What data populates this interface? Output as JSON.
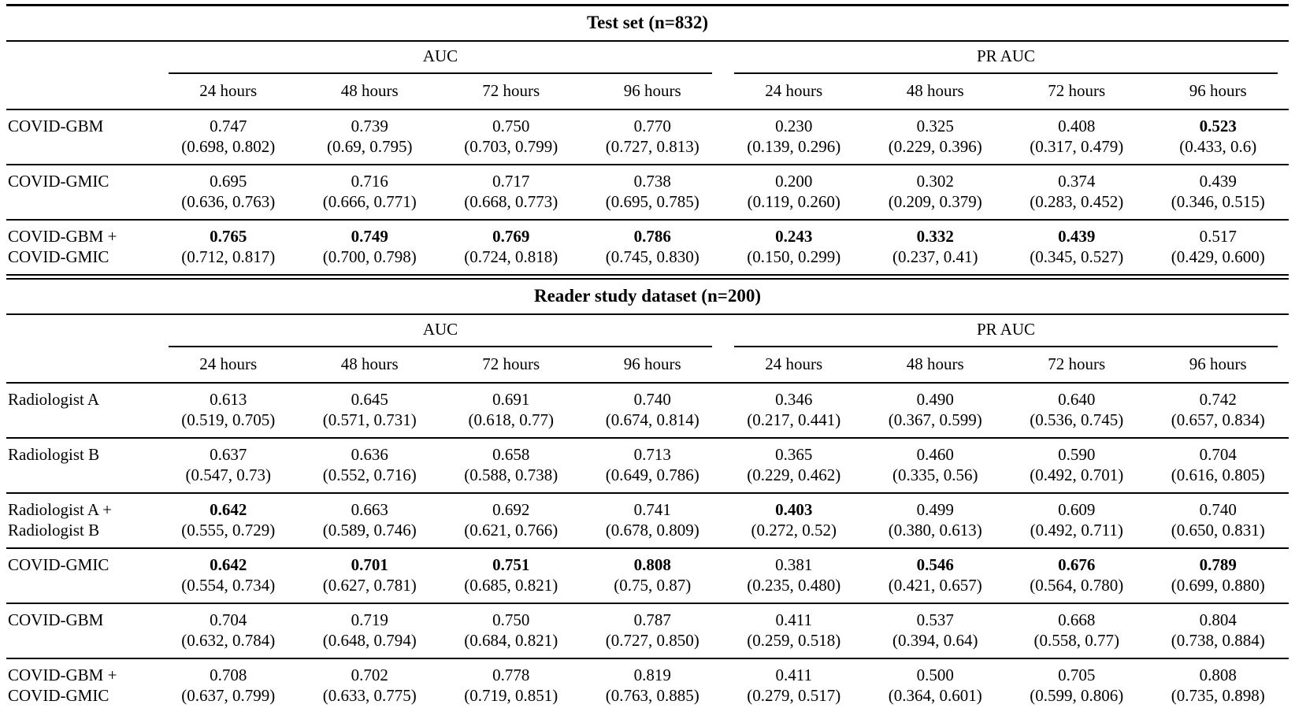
{
  "colors": {
    "text": "#000000",
    "background": "#ffffff",
    "rule": "#000000"
  },
  "table": {
    "sections": [
      {
        "title": "Test set (n=832)",
        "metric_groups": [
          "AUC",
          "PR AUC"
        ],
        "time_headers": [
          "24 hours",
          "48 hours",
          "72 hours",
          "96 hours",
          "24 hours",
          "48 hours",
          "72 hours",
          "96 hours"
        ],
        "rows": [
          {
            "label": "COVID-GBM",
            "cells": [
              {
                "value": "0.747",
                "ci": "(0.698, 0.802)",
                "bold": false
              },
              {
                "value": "0.739",
                "ci": "(0.69, 0.795)",
                "bold": false
              },
              {
                "value": "0.750",
                "ci": "(0.703, 0.799)",
                "bold": false
              },
              {
                "value": "0.770",
                "ci": "(0.727, 0.813)",
                "bold": false
              },
              {
                "value": "0.230",
                "ci": "(0.139, 0.296)",
                "bold": false
              },
              {
                "value": "0.325",
                "ci": "(0.229, 0.396)",
                "bold": false
              },
              {
                "value": "0.408",
                "ci": "(0.317, 0.479)",
                "bold": false
              },
              {
                "value": "0.523",
                "ci": "(0.433, 0.6)",
                "bold": true
              }
            ]
          },
          {
            "label": "COVID-GMIC",
            "cells": [
              {
                "value": "0.695",
                "ci": "(0.636, 0.763)",
                "bold": false
              },
              {
                "value": "0.716",
                "ci": "(0.666, 0.771)",
                "bold": false
              },
              {
                "value": "0.717",
                "ci": "(0.668, 0.773)",
                "bold": false
              },
              {
                "value": "0.738",
                "ci": "(0.695, 0.785)",
                "bold": false
              },
              {
                "value": "0.200",
                "ci": "(0.119, 0.260)",
                "bold": false
              },
              {
                "value": "0.302",
                "ci": "(0.209, 0.379)",
                "bold": false
              },
              {
                "value": "0.374",
                "ci": "(0.283, 0.452)",
                "bold": false
              },
              {
                "value": "0.439",
                "ci": "(0.346, 0.515)",
                "bold": false
              }
            ]
          },
          {
            "label": "COVID-GBM +\nCOVID-GMIC",
            "cells": [
              {
                "value": "0.765",
                "ci": "(0.712, 0.817)",
                "bold": true
              },
              {
                "value": "0.749",
                "ci": "(0.700, 0.798)",
                "bold": true
              },
              {
                "value": "0.769",
                "ci": "(0.724, 0.818)",
                "bold": true
              },
              {
                "value": "0.786",
                "ci": "(0.745, 0.830)",
                "bold": true
              },
              {
                "value": "0.243",
                "ci": "(0.150, 0.299)",
                "bold": true
              },
              {
                "value": "0.332",
                "ci": "(0.237, 0.41)",
                "bold": true
              },
              {
                "value": "0.439",
                "ci": "(0.345, 0.527)",
                "bold": true
              },
              {
                "value": "0.517",
                "ci": "(0.429, 0.600)",
                "bold": false
              }
            ]
          }
        ]
      },
      {
        "title": "Reader study dataset (n=200)",
        "metric_groups": [
          "AUC",
          "PR AUC"
        ],
        "time_headers": [
          "24 hours",
          "48 hours",
          "72 hours",
          "96 hours",
          "24 hours",
          "48 hours",
          "72 hours",
          "96 hours"
        ],
        "rows": [
          {
            "label": "Radiologist A",
            "cells": [
              {
                "value": "0.613",
                "ci": "(0.519, 0.705)",
                "bold": false
              },
              {
                "value": "0.645",
                "ci": "(0.571, 0.731)",
                "bold": false
              },
              {
                "value": "0.691",
                "ci": "(0.618, 0.77)",
                "bold": false
              },
              {
                "value": "0.740",
                "ci": "(0.674, 0.814)",
                "bold": false
              },
              {
                "value": "0.346",
                "ci": "(0.217, 0.441)",
                "bold": false
              },
              {
                "value": "0.490",
                "ci": "(0.367, 0.599)",
                "bold": false
              },
              {
                "value": "0.640",
                "ci": "(0.536, 0.745)",
                "bold": false
              },
              {
                "value": "0.742",
                "ci": "(0.657, 0.834)",
                "bold": false
              }
            ]
          },
          {
            "label": "Radiologist B",
            "cells": [
              {
                "value": "0.637",
                "ci": "(0.547, 0.73)",
                "bold": false
              },
              {
                "value": "0.636",
                "ci": "(0.552, 0.716)",
                "bold": false
              },
              {
                "value": "0.658",
                "ci": "(0.588, 0.738)",
                "bold": false
              },
              {
                "value": "0.713",
                "ci": "(0.649, 0.786)",
                "bold": false
              },
              {
                "value": "0.365",
                "ci": "(0.229, 0.462)",
                "bold": false
              },
              {
                "value": "0.460",
                "ci": "(0.335, 0.56)",
                "bold": false
              },
              {
                "value": "0.590",
                "ci": "(0.492, 0.701)",
                "bold": false
              },
              {
                "value": "0.704",
                "ci": "(0.616, 0.805)",
                "bold": false
              }
            ]
          },
          {
            "label": "Radiologist A +\nRadiologist B",
            "cells": [
              {
                "value": "0.642",
                "ci": "(0.555, 0.729)",
                "bold": true
              },
              {
                "value": "0.663",
                "ci": "(0.589, 0.746)",
                "bold": false
              },
              {
                "value": "0.692",
                "ci": "(0.621, 0.766)",
                "bold": false
              },
              {
                "value": "0.741",
                "ci": "(0.678, 0.809)",
                "bold": false
              },
              {
                "value": "0.403",
                "ci": "(0.272, 0.52)",
                "bold": true
              },
              {
                "value": "0.499",
                "ci": "(0.380, 0.613)",
                "bold": false
              },
              {
                "value": "0.609",
                "ci": "(0.492, 0.711)",
                "bold": false
              },
              {
                "value": "0.740",
                "ci": "(0.650, 0.831)",
                "bold": false
              }
            ]
          },
          {
            "label": "COVID-GMIC",
            "cells": [
              {
                "value": "0.642",
                "ci": "(0.554, 0.734)",
                "bold": true
              },
              {
                "value": "0.701",
                "ci": "(0.627, 0.781)",
                "bold": true
              },
              {
                "value": "0.751",
                "ci": "(0.685, 0.821)",
                "bold": true
              },
              {
                "value": "0.808",
                "ci": "(0.75, 0.87)",
                "bold": true
              },
              {
                "value": "0.381",
                "ci": "(0.235, 0.480)",
                "bold": false
              },
              {
                "value": "0.546",
                "ci": "(0.421, 0.657)",
                "bold": true
              },
              {
                "value": "0.676",
                "ci": "(0.564, 0.780)",
                "bold": true
              },
              {
                "value": "0.789",
                "ci": "(0.699, 0.880)",
                "bold": true
              }
            ]
          },
          {
            "label": "COVID-GBM",
            "cells": [
              {
                "value": "0.704",
                "ci": "(0.632, 0.784)",
                "bold": false
              },
              {
                "value": "0.719",
                "ci": "(0.648, 0.794)",
                "bold": false
              },
              {
                "value": "0.750",
                "ci": "(0.684, 0.821)",
                "bold": false
              },
              {
                "value": "0.787",
                "ci": "(0.727, 0.850)",
                "bold": false
              },
              {
                "value": "0.411",
                "ci": "(0.259, 0.518)",
                "bold": false
              },
              {
                "value": "0.537",
                "ci": "(0.394, 0.64)",
                "bold": false
              },
              {
                "value": "0.668",
                "ci": "(0.558, 0.77)",
                "bold": false
              },
              {
                "value": "0.804",
                "ci": "(0.738, 0.884)",
                "bold": false
              }
            ]
          },
          {
            "label": "COVID-GBM +\nCOVID-GMIC",
            "cells": [
              {
                "value": "0.708",
                "ci": "(0.637, 0.799)",
                "bold": false
              },
              {
                "value": "0.702",
                "ci": "(0.633, 0.775)",
                "bold": false
              },
              {
                "value": "0.778",
                "ci": "(0.719, 0.851)",
                "bold": false
              },
              {
                "value": "0.819",
                "ci": "(0.763, 0.885)",
                "bold": false
              },
              {
                "value": "0.411",
                "ci": "(0.279, 0.517)",
                "bold": false
              },
              {
                "value": "0.500",
                "ci": "(0.364, 0.601)",
                "bold": false
              },
              {
                "value": "0.705",
                "ci": "(0.599, 0.806)",
                "bold": false
              },
              {
                "value": "0.808",
                "ci": "(0.735, 0.898)",
                "bold": false
              }
            ]
          }
        ]
      }
    ]
  }
}
